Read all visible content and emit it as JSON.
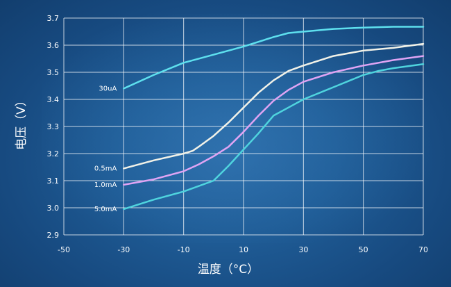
{
  "chart_data": {
    "type": "line",
    "xlabel": "温度（°C）",
    "ylabel": "电压（V）",
    "xlim": [
      -50,
      70
    ],
    "ylim": [
      2.9,
      3.7
    ],
    "x_ticks": [
      "-50",
      "-30",
      "-10",
      "10",
      "30",
      "50",
      "70"
    ],
    "y_ticks": [
      "2.9",
      "3.0",
      "3.1",
      "3.2",
      "3.3",
      "3.4",
      "3.5",
      "3.6",
      "3.7"
    ],
    "grid": true,
    "series": [
      {
        "name": "30uA",
        "color": "#5ee0ee",
        "x": [
          -30,
          -20,
          -10,
          0,
          10,
          20,
          25,
          30,
          40,
          50,
          60,
          70
        ],
        "y": [
          3.44,
          3.49,
          3.535,
          3.565,
          3.595,
          3.63,
          3.645,
          3.65,
          3.66,
          3.665,
          3.668,
          3.668
        ]
      },
      {
        "name": "0.5mA",
        "color": "#f2f2e8",
        "x": [
          -30,
          -20,
          -10,
          -7,
          -5,
          0,
          5,
          10,
          15,
          20,
          25,
          30,
          40,
          50,
          60,
          70
        ],
        "y": [
          3.145,
          3.175,
          3.2,
          3.21,
          3.225,
          3.265,
          3.315,
          3.37,
          3.425,
          3.47,
          3.505,
          3.525,
          3.56,
          3.58,
          3.59,
          3.605
        ]
      },
      {
        "name": "1.0mA",
        "color": "#e0a4f4",
        "x": [
          -30,
          -20,
          -10,
          -5,
          0,
          5,
          10,
          15,
          20,
          25,
          30,
          40,
          50,
          60,
          70
        ],
        "y": [
          3.085,
          3.105,
          3.135,
          3.16,
          3.19,
          3.225,
          3.28,
          3.34,
          3.395,
          3.435,
          3.465,
          3.5,
          3.525,
          3.545,
          3.56
        ]
      },
      {
        "name": "5.0mA",
        "color": "#4fd4de",
        "x": [
          -30,
          -20,
          -10,
          0,
          5,
          10,
          15,
          20,
          25,
          30,
          40,
          50,
          55,
          60,
          70
        ],
        "y": [
          2.995,
          3.03,
          3.06,
          3.1,
          3.155,
          3.215,
          3.275,
          3.34,
          3.37,
          3.4,
          3.445,
          3.49,
          3.505,
          3.515,
          3.53
        ]
      }
    ]
  }
}
